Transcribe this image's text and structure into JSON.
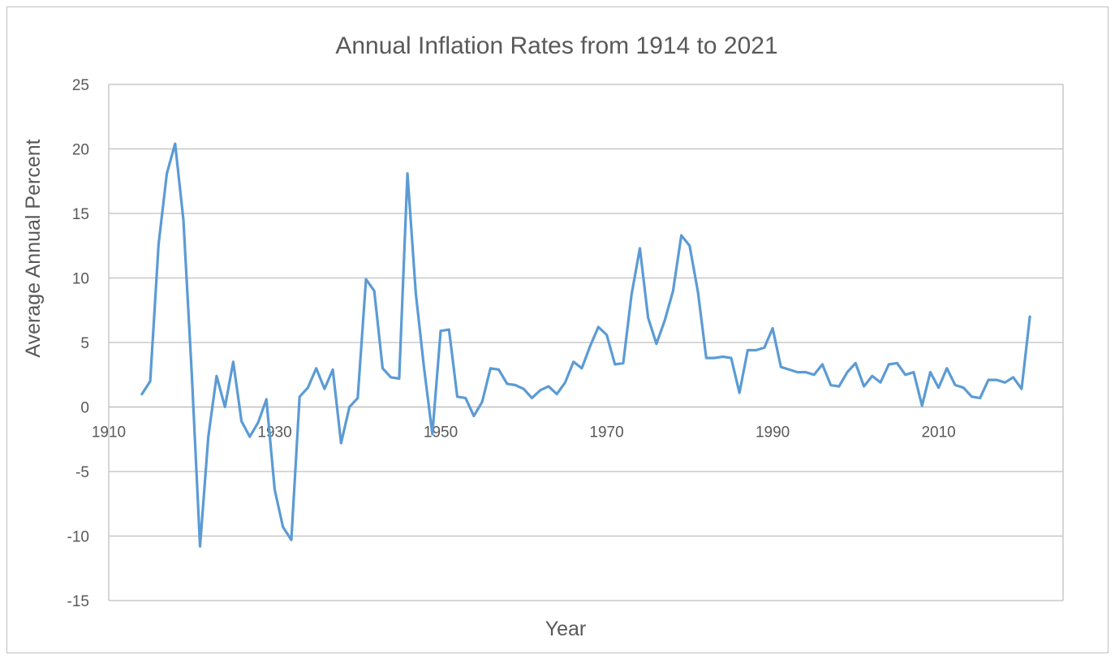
{
  "chart_data": {
    "type": "line",
    "title": "Annual Inflation Rates from 1914 to 2021",
    "xlabel": "Year",
    "ylabel": "Average Annual Percent",
    "xlim": [
      1910,
      2025
    ],
    "ylim": [
      -15,
      25
    ],
    "x_ticks": [
      1910,
      1930,
      1950,
      1970,
      1990,
      2010
    ],
    "y_ticks": [
      25,
      20,
      15,
      10,
      5,
      0,
      -5,
      -10,
      -15
    ],
    "grid": true,
    "legend": "none",
    "colors": {
      "line": "#5b9bd5",
      "grid": "#bfbfbf",
      "text": "#595959"
    },
    "series": [
      {
        "x": [
          1914,
          1915,
          1916,
          1917,
          1918,
          1919,
          1920,
          1921,
          1922,
          1923,
          1924,
          1925,
          1926,
          1927,
          1928,
          1929,
          1930,
          1931,
          1932,
          1933,
          1934,
          1935,
          1936,
          1937,
          1938,
          1939,
          1940,
          1941,
          1942,
          1943,
          1944,
          1945,
          1946,
          1947,
          1948,
          1949,
          1950,
          1951,
          1952,
          1953,
          1954,
          1955,
          1956,
          1957,
          1958,
          1959,
          1960,
          1961,
          1962,
          1963,
          1964,
          1965,
          1966,
          1967,
          1968,
          1969,
          1970,
          1971,
          1972,
          1973,
          1974,
          1975,
          1976,
          1977,
          1978,
          1979,
          1980,
          1981,
          1982,
          1983,
          1984,
          1985,
          1986,
          1987,
          1988,
          1989,
          1990,
          1991,
          1992,
          1993,
          1994,
          1995,
          1996,
          1997,
          1998,
          1999,
          2000,
          2001,
          2002,
          2003,
          2004,
          2005,
          2006,
          2007,
          2008,
          2009,
          2010,
          2011,
          2012,
          2013,
          2014,
          2015,
          2016,
          2017,
          2018,
          2019,
          2020,
          2021
        ],
        "values": [
          1.0,
          2.0,
          12.6,
          18.1,
          20.4,
          14.5,
          2.6,
          -10.8,
          -2.3,
          2.4,
          0.0,
          3.5,
          -1.1,
          -2.3,
          -1.2,
          0.6,
          -6.4,
          -9.3,
          -10.3,
          0.8,
          1.5,
          3.0,
          1.4,
          2.9,
          -2.8,
          0.0,
          0.7,
          9.9,
          9.0,
          3.0,
          2.3,
          2.2,
          18.1,
          8.8,
          3.0,
          -2.1,
          5.9,
          6.0,
          0.8,
          0.7,
          -0.7,
          0.4,
          3.0,
          2.9,
          1.8,
          1.7,
          1.4,
          0.7,
          1.3,
          1.6,
          1.0,
          1.9,
          3.5,
          3.0,
          4.7,
          6.2,
          5.6,
          3.3,
          3.4,
          8.7,
          12.3,
          6.9,
          4.9,
          6.7,
          9.0,
          13.3,
          12.5,
          8.9,
          3.8,
          3.8,
          3.9,
          3.8,
          1.1,
          4.4,
          4.4,
          4.6,
          6.1,
          3.1,
          2.9,
          2.7,
          2.7,
          2.5,
          3.3,
          1.7,
          1.6,
          2.7,
          3.4,
          1.6,
          2.4,
          1.9,
          3.3,
          3.4,
          2.5,
          2.7,
          0.1,
          2.7,
          1.5,
          3.0,
          1.7,
          1.5,
          0.8,
          0.7,
          2.1,
          2.1,
          1.9,
          2.3,
          1.4,
          7.0
        ]
      }
    ]
  }
}
